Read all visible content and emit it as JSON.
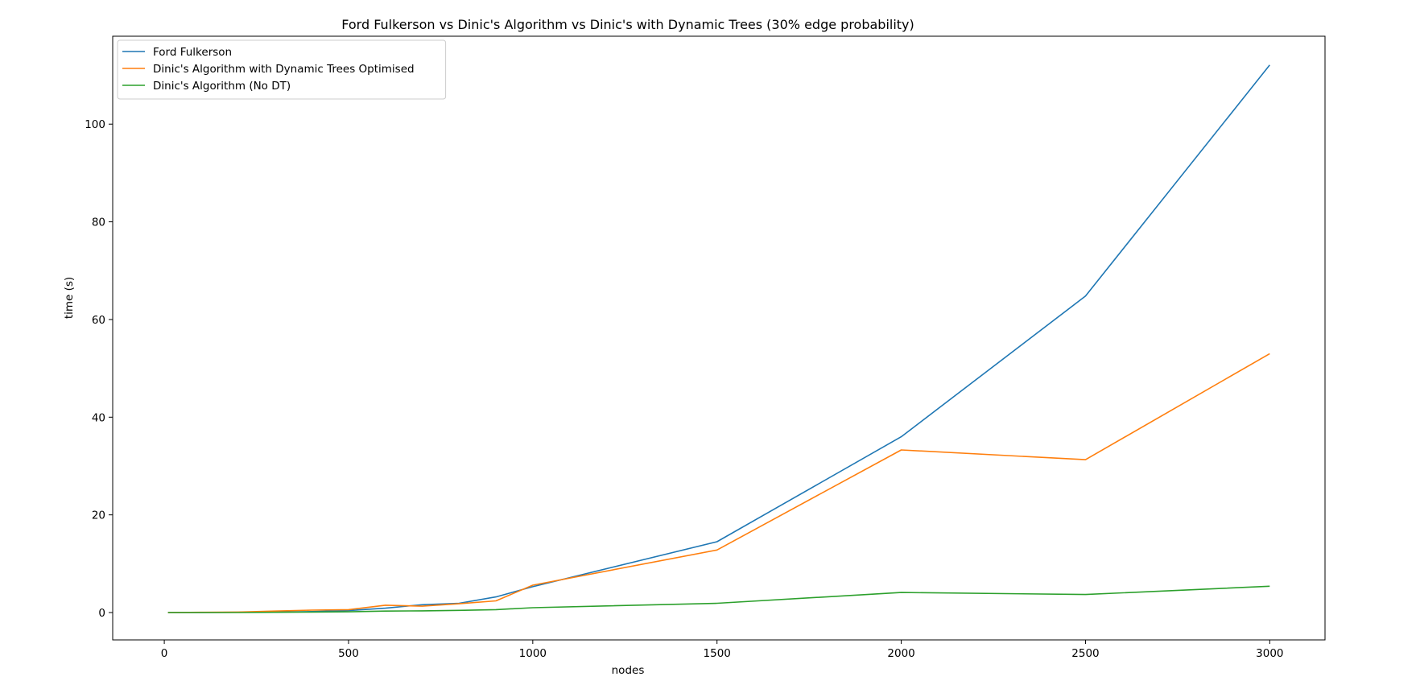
{
  "chart_data": {
    "type": "line",
    "title": "Ford Fulkerson vs Dinic's Algorithm vs Dinic's with Dynamic Trees (30% edge probability)",
    "xlabel": "nodes",
    "ylabel": "time (s)",
    "xlim": [
      -140,
      3150
    ],
    "ylim": [
      -5.6,
      118.0
    ],
    "xticks": [
      0,
      500,
      1000,
      1500,
      2000,
      2500,
      3000
    ],
    "yticks": [
      0,
      20,
      40,
      60,
      80,
      100
    ],
    "grid": false,
    "legend_position": "top-left",
    "series": [
      {
        "name": "Ford Fulkerson",
        "color": "#1f77b4",
        "x": [
          10,
          100,
          200,
          300,
          400,
          500,
          600,
          700,
          800,
          900,
          1000,
          1500,
          2000,
          2500,
          3000
        ],
        "y": [
          0.0,
          0.0,
          0.05,
          0.1,
          0.2,
          0.4,
          0.9,
          1.6,
          1.9,
          3.2,
          5.3,
          14.5,
          36.0,
          64.8,
          112.1
        ]
      },
      {
        "name": "Dinic's Algorithm with Dynamic Trees Optimised",
        "color": "#ff7f0e",
        "x": [
          10,
          100,
          200,
          300,
          400,
          500,
          600,
          700,
          800,
          900,
          1000,
          1500,
          2000,
          2500,
          3000
        ],
        "y": [
          0.0,
          0.05,
          0.1,
          0.3,
          0.5,
          0.6,
          1.5,
          1.3,
          1.8,
          2.4,
          5.6,
          12.8,
          33.3,
          31.3,
          53.0
        ]
      },
      {
        "name": "Dinic's Algorithm (No DT)",
        "color": "#2ca02c",
        "x": [
          10,
          100,
          200,
          300,
          400,
          500,
          600,
          700,
          800,
          900,
          1000,
          1500,
          2000,
          2500,
          3000
        ],
        "y": [
          0.0,
          0.0,
          0.0,
          0.05,
          0.1,
          0.15,
          0.3,
          0.35,
          0.45,
          0.6,
          1.0,
          1.9,
          4.1,
          3.7,
          5.4
        ]
      }
    ]
  }
}
